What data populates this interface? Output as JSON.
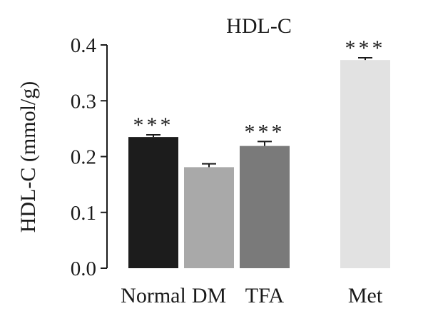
{
  "chart_data": {
    "type": "bar",
    "title": "HDL-C",
    "xlabel": "",
    "ylabel": "HDL-C (mmol/g)",
    "ylim": [
      0,
      0.4
    ],
    "yticks": [
      "0.0",
      "0.1",
      "0.2",
      "0.3",
      "0.4"
    ],
    "ytick_values": [
      0,
      0.1,
      0.2,
      0.3,
      0.4
    ],
    "grid": false,
    "categories": [
      "Normal",
      "DM",
      "TFA",
      "Met"
    ],
    "values": [
      0.235,
      0.181,
      0.219,
      0.373
    ],
    "errors": [
      0.004,
      0.006,
      0.008,
      0.004
    ],
    "significance": [
      "***",
      "",
      "***",
      "***"
    ],
    "colors": [
      "#1c1c1c",
      "#a9a9a9",
      "#7a7a7a",
      "#e2e2e2"
    ]
  }
}
